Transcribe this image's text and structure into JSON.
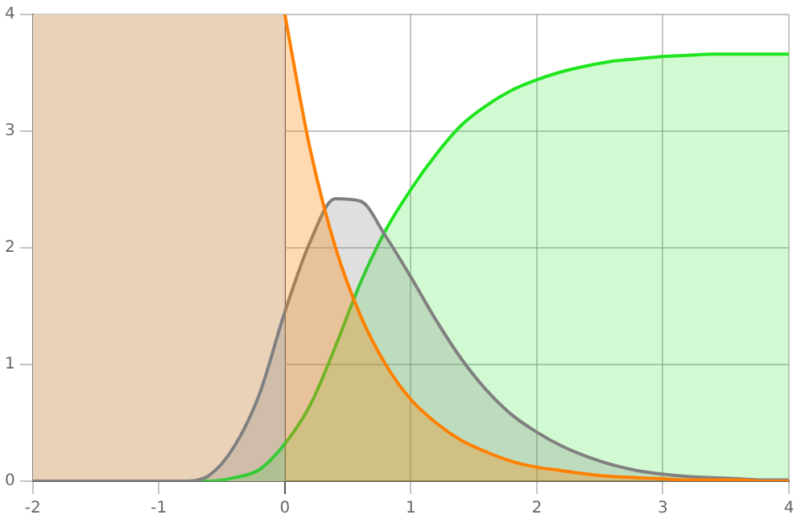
{
  "chart_data": {
    "type": "area",
    "x": [
      -2,
      -1.8,
      -1.6,
      -1.4,
      -1.2,
      -1,
      -0.8,
      -0.6,
      -0.4,
      -0.2,
      0,
      0.2,
      0.4,
      0.6,
      0.8,
      1,
      1.2,
      1.4,
      1.6,
      1.8,
      2,
      2.2,
      2.4,
      2.6,
      2.8,
      3,
      3.2,
      3.4,
      3.6,
      3.8,
      4
    ],
    "series": [
      {
        "color": "#ff8000",
        "values": [
          null,
          null,
          null,
          null,
          null,
          null,
          null,
          null,
          null,
          null,
          4.0,
          2.85,
          2.01,
          1.42,
          1.0,
          0.7,
          0.5,
          0.35,
          0.25,
          0.17,
          0.12,
          0.09,
          0.06,
          0.04,
          0.03,
          0.02,
          0.01,
          0.01,
          0.01,
          0.0,
          0.0
        ]
      },
      {
        "color": "#808080",
        "values": [
          0,
          0,
          0,
          0,
          0,
          0,
          0,
          0.05,
          0.3,
          0.75,
          1.45,
          2.05,
          2.42,
          2.4,
          2.1,
          1.75,
          1.38,
          1.05,
          0.78,
          0.57,
          0.42,
          0.3,
          0.21,
          0.14,
          0.09,
          0.06,
          0.04,
          0.03,
          0.02,
          0.01,
          0.01
        ]
      },
      {
        "color": "#1ee51e",
        "values": [
          0,
          0,
          0,
          0,
          0,
          0,
          0,
          0,
          0.03,
          0.1,
          0.32,
          0.65,
          1.15,
          1.7,
          2.15,
          2.5,
          2.8,
          3.05,
          3.22,
          3.35,
          3.44,
          3.51,
          3.56,
          3.6,
          3.62,
          3.64,
          3.65,
          3.66,
          3.66,
          3.66,
          3.66
        ]
      }
    ],
    "bands": [
      {
        "axis": "x",
        "from": -2,
        "to": 0,
        "color": "#ead2b9"
      }
    ],
    "xlim": [
      -2,
      4
    ],
    "xticks": [
      -2,
      -1,
      0,
      1,
      2,
      3,
      4
    ],
    "ylim": [
      0,
      4
    ],
    "yticks": [
      0,
      1,
      2,
      3,
      4
    ],
    "grid": true
  }
}
